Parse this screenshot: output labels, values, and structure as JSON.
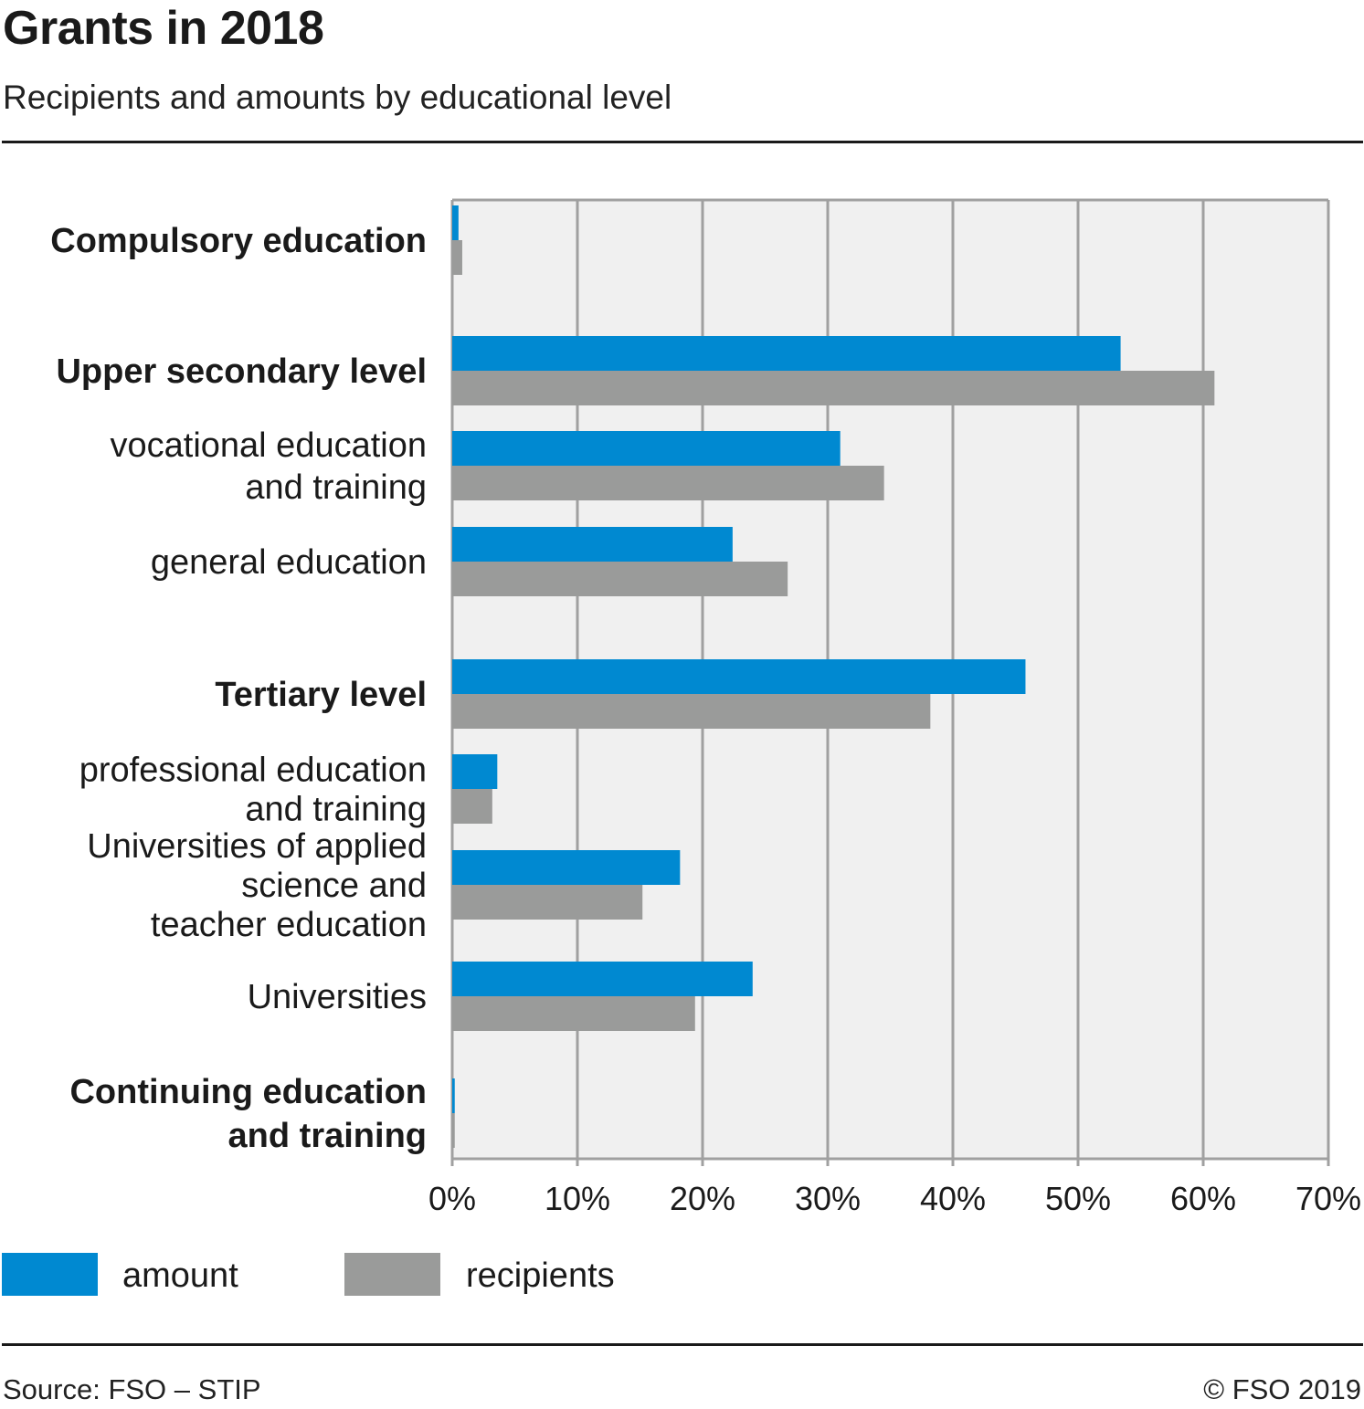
{
  "header": {
    "title": "Grants in 2018",
    "subtitle": "Recipients and amounts by educational level"
  },
  "footer": {
    "source": "Source: FSO – STIP",
    "copyright": "© FSO 2019"
  },
  "colors": {
    "amount": "#0089d1",
    "recipients": "#9a9b9a",
    "plot_background": "#f0f0f0",
    "grid": "#a0a0a0"
  },
  "chart_data": {
    "type": "bar",
    "orientation": "horizontal",
    "title": "Grants in 2018",
    "subtitle": "Recipients and amounts by educational level",
    "xlim": [
      0,
      70
    ],
    "x_ticks": [
      "0%",
      "10%",
      "20%",
      "30%",
      "40%",
      "50%",
      "60%",
      "70%"
    ],
    "grid": true,
    "legend_position": "bottom-left",
    "categories": [
      {
        "lines": [
          "Compulsory education"
        ],
        "bold": true
      },
      {
        "lines": [
          "Upper secondary level"
        ],
        "bold": true
      },
      {
        "lines": [
          "vocational education",
          "and training"
        ],
        "bold": false
      },
      {
        "lines": [
          "general education"
        ],
        "bold": false
      },
      {
        "lines": [
          "Tertiary level"
        ],
        "bold": true
      },
      {
        "lines": [
          "professional education",
          "and training"
        ],
        "bold": false
      },
      {
        "lines": [
          "Universities of applied",
          "science and",
          "teacher education"
        ],
        "bold": false
      },
      {
        "lines": [
          "Universities"
        ],
        "bold": false
      },
      {
        "lines": [
          "Continuing education",
          "and training"
        ],
        "bold": true
      }
    ],
    "series": [
      {
        "name": "amount",
        "color": "#0089d1",
        "values": [
          0.5,
          53.4,
          31.0,
          22.4,
          45.8,
          3.6,
          18.2,
          24.0,
          0.2
        ]
      },
      {
        "name": "recipients",
        "color": "#9a9b9a",
        "values": [
          0.8,
          60.9,
          34.5,
          26.8,
          38.2,
          3.2,
          15.2,
          19.4,
          0.2
        ]
      }
    ]
  }
}
